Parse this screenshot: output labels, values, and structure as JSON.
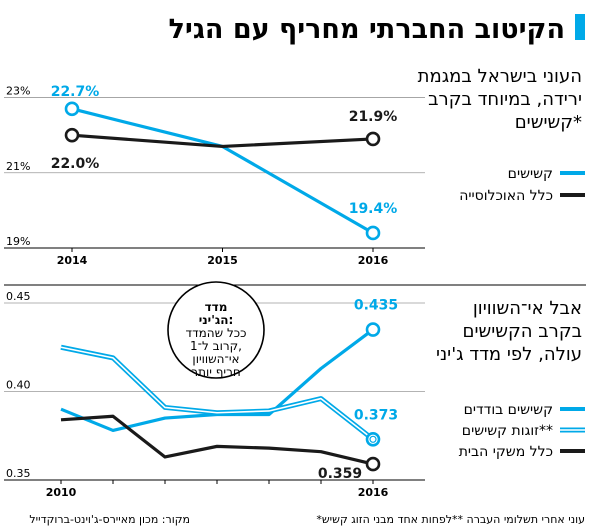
{
  "title": "הקיטוב החברתי מחריף עם הגיל",
  "accent_color": "#00a9e8",
  "dark_color": "#1a1a1a",
  "footnote": "*עוני אחרי תשלומי העברה **לפחות אחד מבני הזוג קשיש",
  "source": "מקור: מכון מאיירס-ג'וינט-ברוקדייל",
  "chart_data": [
    {
      "type": "line",
      "subtitle_lines": [
        "העוני בישראל במגמת",
        "ירידה, במיוחד בקרב",
        "קשישים*"
      ],
      "x": [
        "2014",
        "2015",
        "2016"
      ],
      "ylim": [
        19,
        23.6
      ],
      "yticks": [
        "19%",
        "21%",
        "23%"
      ],
      "series": [
        {
          "name": "קשישים",
          "values": [
            22.7,
            21.7,
            19.4
          ],
          "color": "#00a9e8",
          "style": "solid",
          "labels": [
            "22.7%",
            "",
            "19.4%"
          ]
        },
        {
          "name": "כלל האוכלוסייה",
          "values": [
            22.0,
            21.7,
            21.9
          ],
          "color": "#1a1a1a",
          "style": "solid",
          "labels": [
            "22.0%",
            "",
            "21.9%"
          ]
        }
      ]
    },
    {
      "type": "line",
      "subtitle_lines": [
        "אבל אי־השוויון",
        "בקרב הקשישים",
        "עולה, לפי מדד ג'יני"
      ],
      "x": [
        "2010",
        "2011",
        "2012",
        "2013",
        "2014",
        "2015",
        "2016"
      ],
      "xticks": [
        "2010",
        "2016"
      ],
      "ylim": [
        0.35,
        0.45
      ],
      "yticks": [
        "0.35",
        "0.40",
        "0.45"
      ],
      "series": [
        {
          "name": "קשישים בודדים",
          "values": [
            0.39,
            0.378,
            0.385,
            0.387,
            0.387,
            0.413,
            0.435
          ],
          "color": "#00a9e8",
          "style": "solid",
          "end_label": "0.435"
        },
        {
          "name": "זוגות קשישים**",
          "values": [
            0.425,
            0.419,
            0.391,
            0.388,
            0.389,
            0.396,
            0.373
          ],
          "color": "#00a9e8",
          "style": "double",
          "end_label": "0.373"
        },
        {
          "name": "כלל משקי הבית",
          "values": [
            0.384,
            0.386,
            0.363,
            0.369,
            0.368,
            0.366,
            0.359
          ],
          "color": "#1a1a1a",
          "style": "solid",
          "end_label": "0.359"
        }
      ],
      "callout": {
        "heading_lines": [
          "מדד",
          "הג'יני:"
        ],
        "body_lines": [
          "ככל שהמדד",
          "קרוב ל־1,",
          "אי־השוויון",
          "חריף יותר"
        ]
      }
    }
  ]
}
